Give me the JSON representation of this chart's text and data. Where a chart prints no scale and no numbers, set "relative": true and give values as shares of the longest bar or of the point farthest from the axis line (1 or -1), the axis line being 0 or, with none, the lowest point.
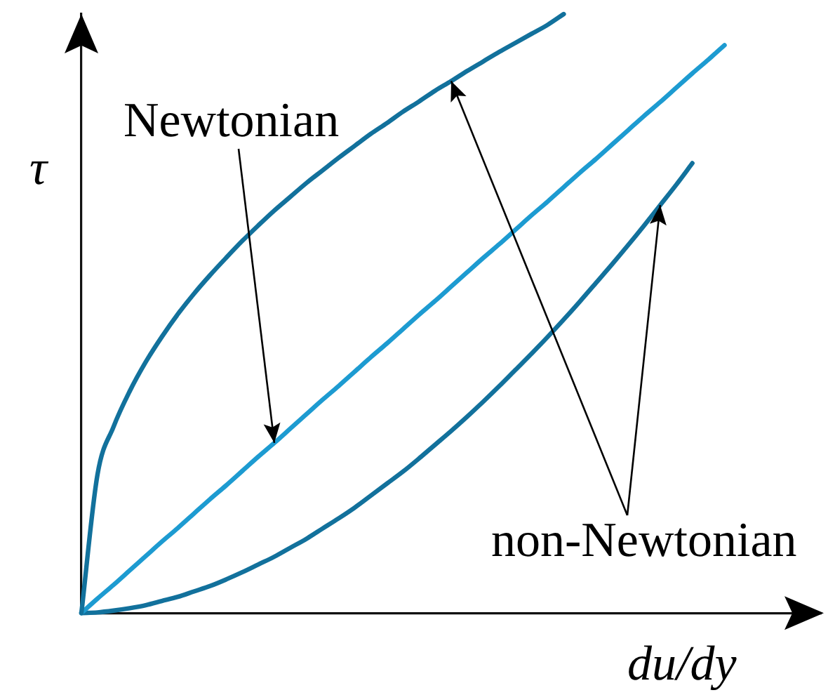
{
  "chart_data": {
    "type": "line",
    "xlabel": "du/dy",
    "ylabel": "τ",
    "annotations": [
      "Newtonian",
      "non-Newtonian"
    ],
    "relative": true,
    "categories": [
      null,
      null,
      null,
      null,
      null,
      null,
      null,
      null,
      null,
      null,
      null,
      null,
      null,
      null,
      null,
      null,
      null,
      null,
      null,
      null,
      null,
      null,
      null,
      null,
      null,
      null,
      null,
      null,
      null,
      null,
      null,
      null,
      null,
      null,
      null,
      null,
      null,
      null,
      null,
      null,
      null,
      null,
      null,
      null,
      null,
      null,
      null
    ],
    "series": [
      {
        "color": "#12719c",
        "values": [
          0,
          0.231,
          0.311,
          0.37,
          0.419,
          0.461,
          0.499,
          0.533,
          0.564,
          0.593,
          0.621,
          0.647,
          0.672,
          0.695,
          0.718,
          0.739,
          0.76,
          0.78,
          0.8,
          0.818,
          0.837,
          0.854,
          0.872,
          0.888,
          0.905,
          0.921,
          0.937,
          0.952,
          0.967,
          0.982,
          1,
          null,
          null,
          null,
          null,
          null,
          null,
          null,
          null,
          null,
          null,
          null,
          null,
          null,
          null,
          null,
          null
        ]
      },
      {
        "color": "#1d9bd1",
        "values": [
          0,
          0.024,
          0.047,
          0.071,
          0.095,
          0.119,
          0.142,
          0.166,
          0.19,
          0.213,
          0.237,
          0.261,
          0.284,
          0.308,
          0.332,
          0.356,
          0.379,
          0.403,
          0.427,
          0.45,
          0.474,
          0.498,
          0.521,
          0.545,
          0.569,
          0.593,
          0.616,
          0.64,
          0.664,
          0.687,
          0.711,
          0.735,
          0.758,
          0.782,
          0.806,
          0.83,
          0.853,
          0.877,
          0.901,
          0.924,
          0.948,
          null,
          null,
          null,
          null,
          null,
          null
        ]
      },
      {
        "color": "#12719c",
        "values": [
          0,
          0.001,
          0.004,
          0.008,
          0.013,
          0.02,
          0.027,
          0.036,
          0.045,
          0.056,
          0.068,
          0.081,
          0.094,
          0.109,
          0.124,
          0.141,
          0.158,
          0.176,
          0.196,
          0.216,
          0.236,
          0.258,
          0.281,
          0.304,
          0.328,
          0.353,
          0.379,
          0.406,
          0.433,
          0.461,
          0.49,
          0.52,
          0.551,
          0.582,
          0.614,
          0.647,
          0.681,
          0.715,
          0.751,
          null,
          null,
          null,
          null,
          null,
          null,
          null,
          null
        ]
      }
    ]
  }
}
